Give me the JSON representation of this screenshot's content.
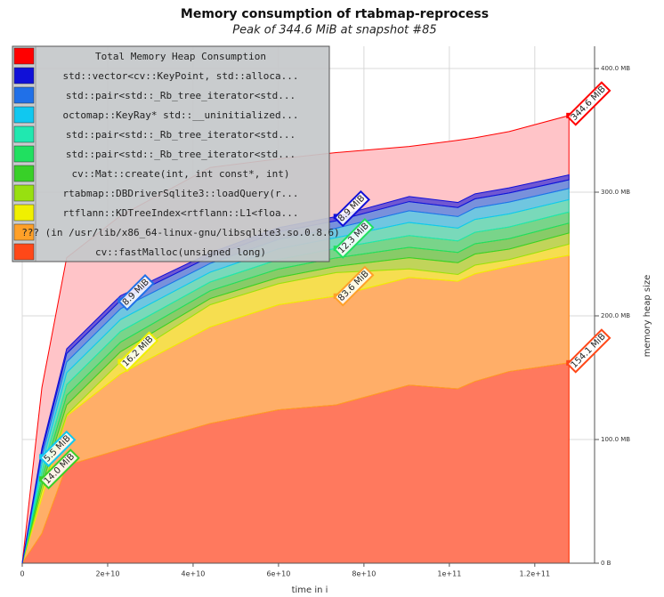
{
  "chart_data": {
    "type": "stacked_area",
    "title": "Memory consumption of rtabmap-reprocess",
    "subtitle": "Peak of 344.6 MiB at snapshot #85",
    "xlabel": "time in i",
    "ylabel": "memory heap size",
    "x": [
      0,
      4600000000,
      10400000000,
      23000000000,
      44000000000,
      60000000000,
      73500000000,
      90600000000,
      102000000000,
      106000000000,
      114000000000,
      128000000000
    ],
    "xlim": [
      0,
      134000000000
    ],
    "xticks": [
      0,
      {
        "value": 20000000000,
        "label": "2e+10"
      },
      {
        "value": 40000000000,
        "label": "4e+10"
      },
      {
        "value": 60000000000,
        "label": "6e+10"
      },
      {
        "value": 80000000000,
        "label": "8e+10"
      },
      {
        "value": 100000000000,
        "label": "1e+11"
      },
      {
        "value": 120000000000,
        "label": "1.2e+11"
      }
    ],
    "ylim": [
      0,
      418
    ],
    "yticks": [
      {
        "value": 0,
        "label": "0 B"
      },
      {
        "value": 100,
        "label": "100.0 MB"
      },
      {
        "value": 200,
        "label": "200.0 MB"
      },
      {
        "value": 300,
        "label": "300.0 MB"
      },
      {
        "value": 400,
        "label": "400.0 MB"
      }
    ],
    "grid": true,
    "legend": "top-left",
    "total": {
      "name": "Total Memory Heap Consumption",
      "color": "#ff0000",
      "fill": "#ffc4c8",
      "values": [
        0,
        142,
        247,
        281,
        320,
        327,
        332,
        337,
        342,
        344,
        349,
        362
      ],
      "peak": {
        "x": 128000000000,
        "label": "344.6 MiB"
      }
    },
    "series": [
      {
        "name": "std::vector<cv::KeyPoint, std::alloca...",
        "color": "#1010d8",
        "values": [
          0,
          2.6,
          3.8,
          3.8,
          3.0,
          3.4,
          3.4,
          4.1,
          4.1,
          4.1,
          4.1,
          4
        ],
        "peak": {
          "x": 73500000000,
          "label": "8.9 MiB"
        }
      },
      {
        "name": "std::pair<std::_Rb_tree_iterator<std...",
        "color": "#2070e8",
        "values": [
          0,
          4.5,
          6.8,
          6.8,
          5.5,
          6.0,
          6.0,
          7.4,
          7.3,
          7.3,
          7.4,
          7
        ],
        "peak": {
          "x": 23000000000,
          "label": "8.9 MiB"
        }
      },
      {
        "name": "octomap::KeyRay* std::__uninitialized...",
        "color": "#10c8f0",
        "values": [
          0,
          5.8,
          8.7,
          8.7,
          7.1,
          7.7,
          7.7,
          9.5,
          9.3,
          9.3,
          9.5,
          9
        ],
        "peak": {
          "x": 4600000000,
          "label": "5.5 MiB"
        }
      },
      {
        "name": "std::pair<std::_Rb_tree_iterator<std...",
        "color": "#20e8b0",
        "values": [
          0,
          6.4,
          9.6,
          9.6,
          7.9,
          8.6,
          8.6,
          10.6,
          10.4,
          10.4,
          10.6,
          10
        ]
      },
      {
        "name": "std::pair<std::_Rb_tree_iterator<std...",
        "color": "#20e060",
        "values": [
          0,
          5.8,
          8.7,
          8.7,
          7.1,
          7.7,
          7.7,
          9.5,
          9.3,
          9.3,
          9.5,
          9
        ],
        "peak": {
          "x": 73500000000,
          "label": "12.3 MiB"
        }
      },
      {
        "name": "cv::Mat::create(int, int const*, int)",
        "color": "#38d028",
        "values": [
          0,
          5.1,
          7.7,
          7.7,
          6.3,
          6.9,
          6.9,
          8.4,
          8.3,
          8.3,
          8.4,
          8
        ],
        "peak": {
          "x": 4600000000,
          "label": "14.0 MiB"
        }
      },
      {
        "name": "rtabmap::DBDriverSqlite3::loadQuery(r...",
        "color": "#98e010",
        "values": [
          0,
          5,
          8,
          8,
          5,
          5,
          5,
          9,
          9.5,
          9,
          8.5,
          9
        ]
      },
      {
        "name": "rtflann::KDTreeIndex<rtflann::L1<floa...",
        "color": "#f0f000",
        "values": [
          0,
          5,
          1,
          10,
          18,
          17,
          19,
          7,
          5.5,
          7,
          5.5,
          9
        ],
        "peak": {
          "x": 23000000000,
          "label": "16.2 MiB"
        }
      },
      {
        "name": "??? (in /usr/lib/x86_64-linux-gnu/libsqlite3.so.0.8.6)",
        "color": "#ffa028",
        "values": [
          0,
          29,
          40,
          61,
          78,
          85,
          88,
          87,
          87,
          87,
          85,
          87
        ],
        "peak": {
          "x": 73500000000,
          "label": "83.6 MiB"
        }
      },
      {
        "name": "cv::fastMalloc(unsigned long)",
        "color": "#ff4818",
        "values": [
          0,
          24,
          79,
          92,
          113,
          124,
          128,
          144,
          141,
          147,
          155,
          162
        ],
        "peak": {
          "x": 128000000000,
          "label": "154.1 MiB"
        }
      }
    ]
  }
}
